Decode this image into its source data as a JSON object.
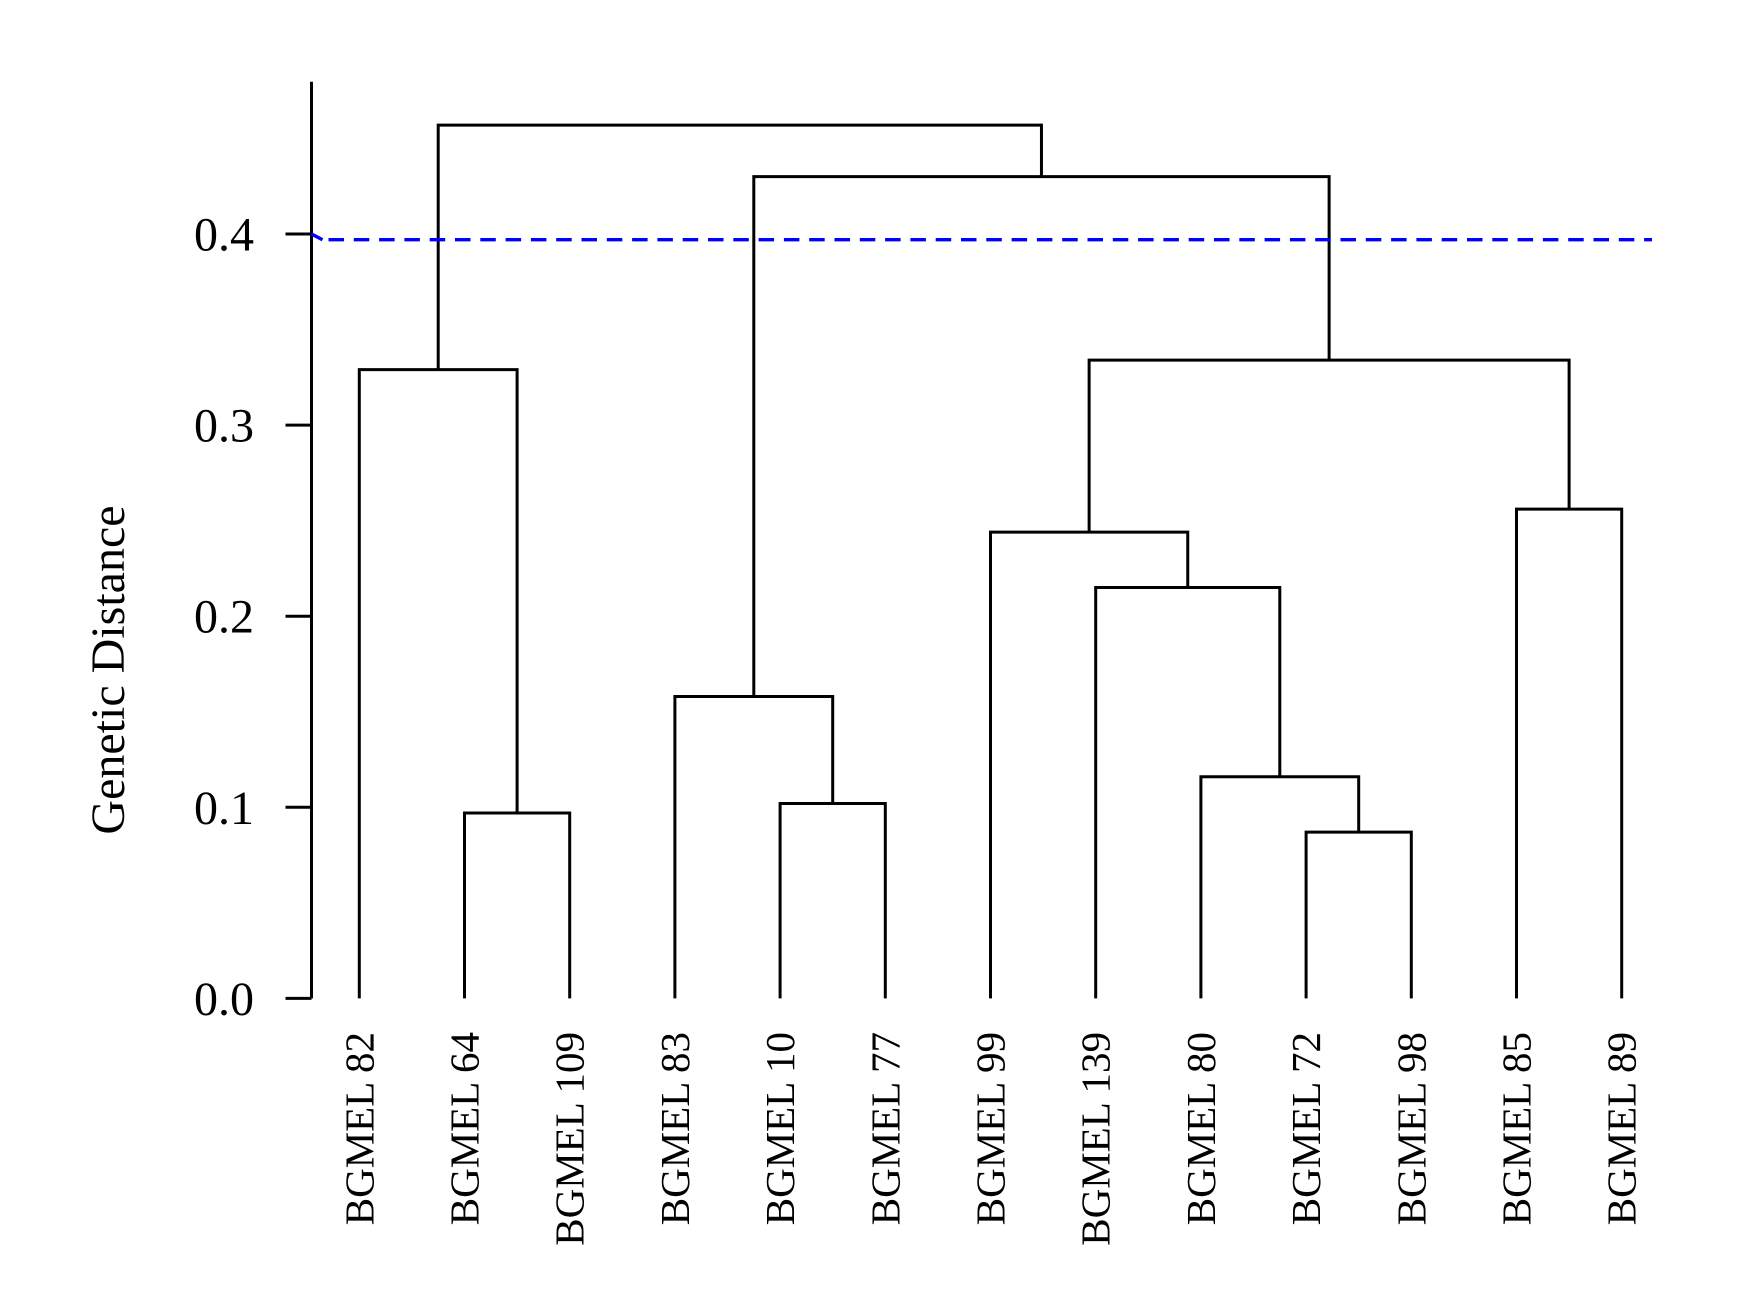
{
  "figure": {
    "background": "#ffffff",
    "foreground": "#000000"
  },
  "chart_data": {
    "type": "dendrogram",
    "title": "",
    "xlabel": "",
    "ylabel": "Genetic Distance",
    "ylim": [
      0,
      0.48
    ],
    "yticks": [
      0,
      0.1,
      0.2,
      0.3,
      0.4
    ],
    "ytick_labels": [
      "0.0",
      "0.1",
      "0.2",
      "0.3",
      "0.4"
    ],
    "grid": false,
    "legend": false,
    "line_color": "#000000",
    "leaves": [
      "BGMEL 82",
      "BGMEL 64",
      "BGMEL 109",
      "BGMEL 83",
      "BGMEL 10",
      "BGMEL 77",
      "BGMEL 99",
      "BGMEL 139",
      "BGMEL 80",
      "BGMEL 72",
      "BGMEL 98",
      "BGMEL 85",
      "BGMEL 89"
    ],
    "threshold_line": {
      "value": 0.397,
      "axis_origin": 0.4,
      "color": "#0000ff",
      "style": "dashed"
    },
    "merges": [
      {
        "cluster": "BGMEL 64 + BGMEL 109",
        "height": 0.097
      },
      {
        "cluster": "BGMEL 82 + (BGMEL 64, BGMEL 109)",
        "height": 0.329
      },
      {
        "cluster": "BGMEL 10 + BGMEL 77",
        "height": 0.102
      },
      {
        "cluster": "BGMEL 83 + (BGMEL 10, BGMEL 77)",
        "height": 0.158
      },
      {
        "cluster": "BGMEL 72 + BGMEL 98",
        "height": 0.087
      },
      {
        "cluster": "BGMEL 80 + (BGMEL 72, BGMEL 98)",
        "height": 0.116
      },
      {
        "cluster": "BGMEL 139 + (BGMEL 80, BGMEL 72, BGMEL 98)",
        "height": 0.215
      },
      {
        "cluster": "BGMEL 99 + (BGMEL 139, BGMEL 80, BGMEL 72, BGMEL 98)",
        "height": 0.244
      },
      {
        "cluster": "BGMEL 85 + BGMEL 89",
        "height": 0.256
      },
      {
        "cluster": "(BGMEL 99 group) + (BGMEL 85, BGMEL 89)",
        "height": 0.334
      },
      {
        "cluster": "(BGMEL 83, BGMEL 10, BGMEL 77) + right supercluster",
        "height": 0.43
      },
      {
        "cluster": "root: left trio + all others",
        "height": 0.457
      }
    ],
    "tree": {
      "h": 0.457,
      "children": [
        {
          "h": 0.329,
          "children": [
            {
              "leaf": "BGMEL 82"
            },
            {
              "h": 0.097,
              "children": [
                {
                  "leaf": "BGMEL 64"
                },
                {
                  "leaf": "BGMEL 109"
                }
              ]
            }
          ]
        },
        {
          "h": 0.43,
          "children": [
            {
              "h": 0.158,
              "children": [
                {
                  "leaf": "BGMEL 83"
                },
                {
                  "h": 0.102,
                  "children": [
                    {
                      "leaf": "BGMEL 10"
                    },
                    {
                      "leaf": "BGMEL 77"
                    }
                  ]
                }
              ]
            },
            {
              "h": 0.334,
              "children": [
                {
                  "h": 0.244,
                  "children": [
                    {
                      "leaf": "BGMEL 99"
                    },
                    {
                      "h": 0.215,
                      "children": [
                        {
                          "leaf": "BGMEL 139"
                        },
                        {
                          "h": 0.116,
                          "children": [
                            {
                              "leaf": "BGMEL 80"
                            },
                            {
                              "h": 0.087,
                              "children": [
                                {
                                  "leaf": "BGMEL 72"
                                },
                                {
                                  "leaf": "BGMEL 98"
                                }
                              ]
                            }
                          ]
                        }
                      ]
                    }
                  ]
                },
                {
                  "h": 0.256,
                  "children": [
                    {
                      "leaf": "BGMEL 85"
                    },
                    {
                      "leaf": "BGMEL 89"
                    }
                  ]
                }
              ]
            }
          ]
        }
      ]
    }
  }
}
